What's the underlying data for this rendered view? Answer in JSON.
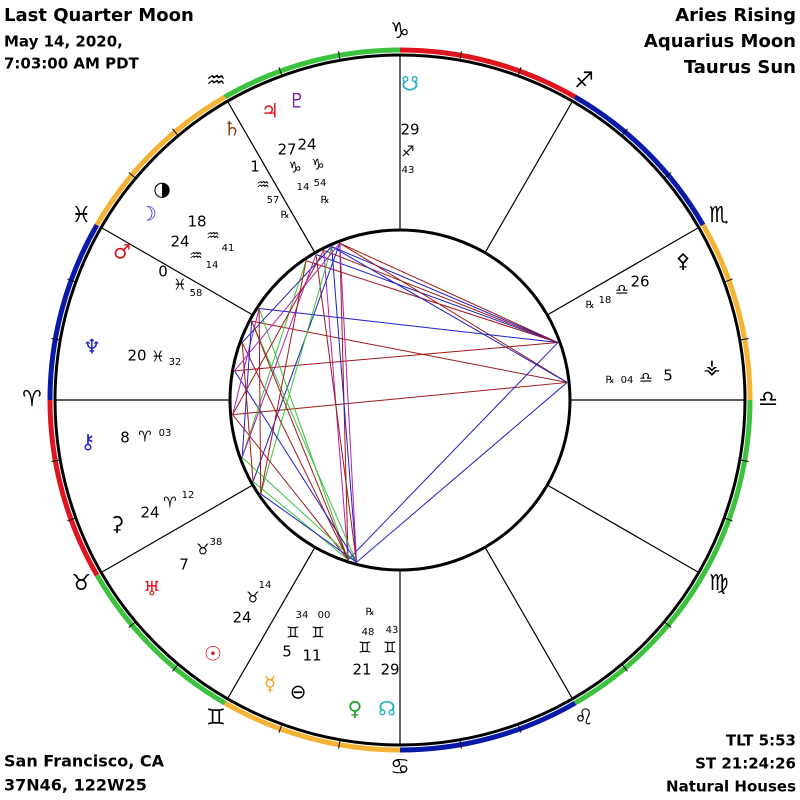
{
  "header": {
    "left": [
      "Last Quarter Moon",
      "May 14, 2020,",
      "7:03:00 AM PDT"
    ],
    "right": [
      "Aries Rising",
      "Aquarius Moon",
      "Taurus Sun"
    ]
  },
  "footer": {
    "left": [
      "San Francisco, CA",
      "37N46, 122W25"
    ],
    "right": [
      "TLT 5:53",
      "ST 21:24:26",
      "Natural Houses"
    ]
  },
  "signs": [
    "♑",
    "♐",
    "♏",
    "♎",
    "♍",
    "♌",
    "♋",
    "♊",
    "♉",
    "♈",
    "♓",
    "♒"
  ],
  "labels": [
    "☋",
    "29",
    "♐",
    "43",
    "♃",
    "♇",
    "♄",
    "27",
    "24",
    "♑",
    "♑",
    "14",
    "54",
    "℞",
    "1",
    "♒",
    "57",
    "℞",
    "◑",
    "☽",
    "18",
    "♒",
    "24",
    "♒",
    "41",
    "14",
    "♂",
    "0",
    "♓",
    "58",
    "♆",
    "20",
    "♓",
    "32",
    "⚷",
    "8",
    "♈",
    "03",
    "⚳",
    "24",
    "♈",
    "12",
    "7",
    "♉",
    "38",
    "♅",
    "♉",
    "14",
    "24",
    "☉",
    "34",
    "00",
    "♊",
    "♊",
    "5",
    "11",
    "☿",
    "⊖",
    "℞",
    "48",
    "43",
    "♊",
    "♊",
    "21",
    "29",
    "♀",
    "☊",
    "⚴",
    "℞",
    "18",
    "♎",
    "26",
    "⚶",
    "℞",
    "04",
    "♎",
    "5"
  ]
}
